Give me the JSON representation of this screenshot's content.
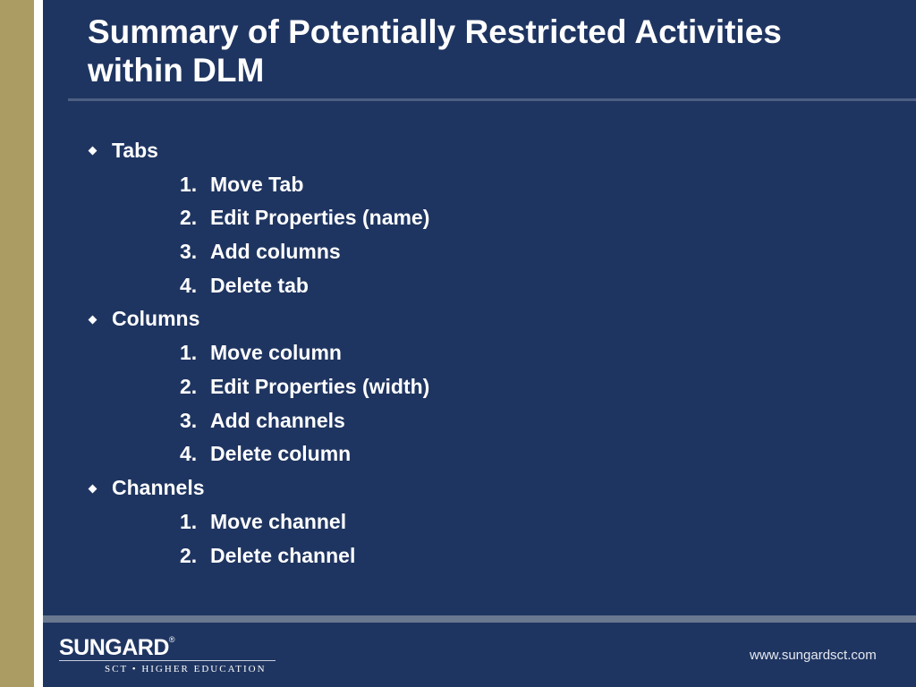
{
  "slide": {
    "title_line1": "Summary of Potentially Restricted Activities",
    "title_line2": "within DLM"
  },
  "sections": [
    {
      "label": "Tabs",
      "items": [
        {
          "num": "1.",
          "text": "Move Tab"
        },
        {
          "num": "2.",
          "text": "Edit Properties (name)"
        },
        {
          "num": "3.",
          "text": "Add columns"
        },
        {
          "num": "4.",
          "text": "Delete tab"
        }
      ]
    },
    {
      "label": "Columns",
      "items": [
        {
          "num": "1.",
          "text": "Move column"
        },
        {
          "num": "2.",
          "text": "Edit Properties (width)"
        },
        {
          "num": "3.",
          "text": "Add channels"
        },
        {
          "num": "4.",
          "text": "Delete column"
        }
      ]
    },
    {
      "label": "Channels",
      "items": [
        {
          "num": "1.",
          "text": "Move channel"
        },
        {
          "num": "2.",
          "text": "Delete channel"
        }
      ]
    }
  ],
  "footer": {
    "logo_text": "SUNGARD",
    "logo_mark": "®",
    "tagline": "SCT • HIGHER EDUCATION",
    "url": "www.sungardsct.com"
  },
  "colors": {
    "background": "#1f3561",
    "accent_gold": "#ab9c64",
    "text": "#ffffff"
  }
}
